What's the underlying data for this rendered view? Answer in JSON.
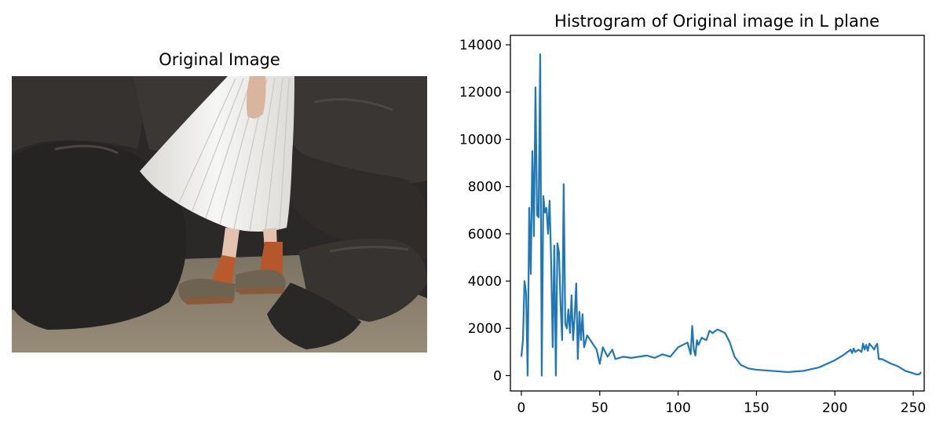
{
  "figure": {
    "panels": [
      {
        "kind": "image",
        "title": "Original Image",
        "image_description_colors": {
          "sand": "#8a7f6c",
          "rock": "#2f2d2b",
          "skirt": "#efefed",
          "sock": "#b75a2e"
        }
      },
      {
        "kind": "chart",
        "title": "Histrogram of Original image in L plane"
      }
    ]
  },
  "chart_data": {
    "type": "line",
    "title": "Histrogram of Original image in L plane",
    "xlabel": "",
    "ylabel": "",
    "xlim": [
      -7,
      257
    ],
    "ylim": [
      -650,
      14400
    ],
    "xticks": [
      0,
      50,
      100,
      150,
      200,
      250
    ],
    "yticks": [
      0,
      2000,
      4000,
      6000,
      8000,
      10000,
      12000,
      14000
    ],
    "grid": false,
    "series": [
      {
        "name": "",
        "color": "#1f77b4",
        "x": [
          0,
          1,
          2,
          3,
          4,
          5,
          6,
          7,
          8,
          9,
          10,
          11,
          12,
          13,
          14,
          15,
          16,
          17,
          18,
          19,
          20,
          21,
          22,
          23,
          24,
          25,
          26,
          27,
          28,
          29,
          30,
          31,
          32,
          33,
          34,
          35,
          36,
          37,
          38,
          39,
          40,
          42,
          45,
          48,
          50,
          52,
          55,
          58,
          60,
          65,
          70,
          75,
          80,
          85,
          90,
          95,
          100,
          103,
          106,
          108,
          109,
          110,
          111,
          112,
          113,
          115,
          118,
          120,
          122,
          125,
          127,
          130,
          133,
          136,
          140,
          145,
          150,
          160,
          170,
          180,
          190,
          200,
          205,
          208,
          210,
          211,
          212,
          213,
          215,
          217,
          218,
          219,
          220,
          221,
          222,
          224,
          225,
          226,
          227,
          228,
          230,
          233,
          236,
          240,
          245,
          250,
          252,
          254,
          255
        ],
        "y": [
          800,
          1500,
          4000,
          3500,
          0,
          7100,
          4300,
          9500,
          5900,
          12200,
          6800,
          6700,
          13600,
          0,
          7600,
          6900,
          7100,
          6000,
          7400,
          4800,
          1200,
          5500,
          0,
          5600,
          5200,
          3000,
          1500,
          8100,
          2200,
          2000,
          2800,
          1800,
          3400,
          1500,
          2500,
          3900,
          700,
          2700,
          1500,
          2600,
          1200,
          1700,
          1400,
          1100,
          500,
          1200,
          800,
          1100,
          700,
          800,
          750,
          800,
          850,
          750,
          900,
          800,
          1200,
          1300,
          1400,
          900,
          2100,
          1100,
          850,
          1500,
          1300,
          1600,
          1500,
          1900,
          1800,
          1950,
          1900,
          1800,
          1400,
          800,
          450,
          300,
          250,
          200,
          150,
          200,
          350,
          650,
          850,
          1000,
          1100,
          950,
          1150,
          1000,
          1100,
          1000,
          1350,
          1100,
          1300,
          1050,
          1350,
          1200,
          1100,
          1250,
          1350,
          700,
          700,
          600,
          500,
          400,
          200,
          100,
          50,
          60,
          150
        ]
      }
    ]
  }
}
